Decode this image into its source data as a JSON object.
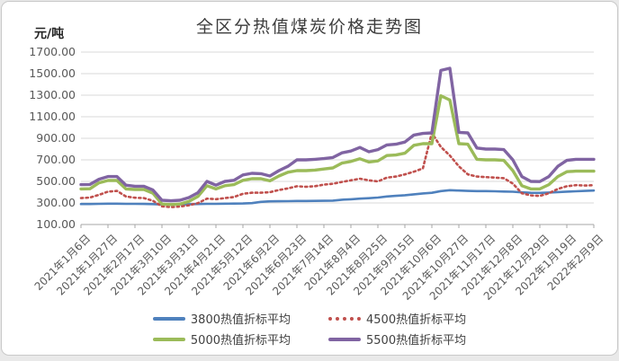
{
  "chart_data": {
    "type": "line",
    "title": "全区分热值煤炭价格走势图",
    "y_unit": "元/吨",
    "ylim": [
      100,
      1700
    ],
    "y_tick_step": 200,
    "y_tick_labels": [
      "1700.00",
      "1500.00",
      "1300.00",
      "1100.00",
      "900.00",
      "700.00",
      "500.00",
      "300.00",
      "100.00"
    ],
    "x_tick_labels": [
      "2021年1月6日",
      "2021年1月27日",
      "2021年2月17日",
      "2021年3月10日",
      "2021年3月31日",
      "2021年4月21日",
      "2021年5月12日",
      "2021年6月2日",
      "2021年6月23日",
      "2021年7月14日",
      "2021年8月4日",
      "2021年8月25日",
      "2021年9月15日",
      "2021年10月6日",
      "2021年10月27日",
      "2021年11月17日",
      "2021年12月8日",
      "2021年12月29日",
      "2022年1月19日",
      "2022年2月9日"
    ],
    "points_per_tick": 3,
    "n_points": 58,
    "grid": "horizontal",
    "legend_position": "bottom",
    "series": [
      {
        "name": "3800热值折标平均",
        "color": "#4F81BD",
        "line_style": "solid",
        "values": [
          290,
          290,
          292,
          293,
          293,
          292,
          292,
          291,
          289,
          286,
          286,
          287,
          288,
          290,
          292,
          292,
          293,
          294,
          295,
          298,
          310,
          315,
          316,
          317,
          318,
          318,
          319,
          320,
          322,
          330,
          334,
          340,
          344,
          350,
          360,
          366,
          372,
          380,
          388,
          394,
          410,
          418,
          415,
          412,
          410,
          410,
          408,
          406,
          404,
          398,
          394,
          393,
          397,
          401,
          405,
          408,
          412,
          415
        ]
      },
      {
        "name": "4500热值折标平均",
        "color": "#C0504D",
        "line_style": "dotted",
        "values": [
          345,
          350,
          375,
          405,
          412,
          360,
          348,
          345,
          320,
          268,
          262,
          267,
          278,
          298,
          340,
          335,
          345,
          355,
          385,
          395,
          395,
          400,
          420,
          435,
          455,
          450,
          455,
          470,
          478,
          495,
          510,
          525,
          510,
          500,
          535,
          545,
          565,
          590,
          620,
          950,
          820,
          740,
          640,
          565,
          545,
          540,
          535,
          530,
          480,
          390,
          370,
          365,
          390,
          430,
          455,
          465,
          462,
          465
        ]
      },
      {
        "name": "5000热值折标平均",
        "color": "#9BBB59",
        "line_style": "solid",
        "values": [
          430,
          432,
          487,
          508,
          508,
          430,
          425,
          425,
          390,
          290,
          285,
          290,
          315,
          360,
          460,
          430,
          460,
          470,
          510,
          525,
          525,
          505,
          550,
          585,
          600,
          600,
          605,
          615,
          625,
          670,
          685,
          710,
          680,
          690,
          740,
          745,
          762,
          835,
          850,
          850,
          1295,
          1255,
          850,
          845,
          705,
          700,
          700,
          695,
          600,
          460,
          430,
          430,
          470,
          545,
          590,
          595,
          595,
          595
        ]
      },
      {
        "name": "5500热值折标平均",
        "color": "#8064A2",
        "line_style": "solid",
        "values": [
          470,
          472,
          520,
          545,
          545,
          465,
          455,
          455,
          420,
          325,
          320,
          325,
          350,
          395,
          500,
          465,
          500,
          510,
          560,
          575,
          572,
          550,
          600,
          640,
          700,
          700,
          705,
          712,
          722,
          765,
          782,
          815,
          775,
          795,
          838,
          845,
          865,
          930,
          945,
          950,
          1530,
          1550,
          955,
          950,
          810,
          800,
          800,
          795,
          700,
          545,
          500,
          498,
          545,
          640,
          695,
          705,
          705,
          705
        ]
      }
    ],
    "colors": {
      "gridline": "#d9d9d9",
      "axis_line": "#a6a6a6",
      "tick_text": "#595959",
      "title_text": "#3d3d3d"
    }
  }
}
